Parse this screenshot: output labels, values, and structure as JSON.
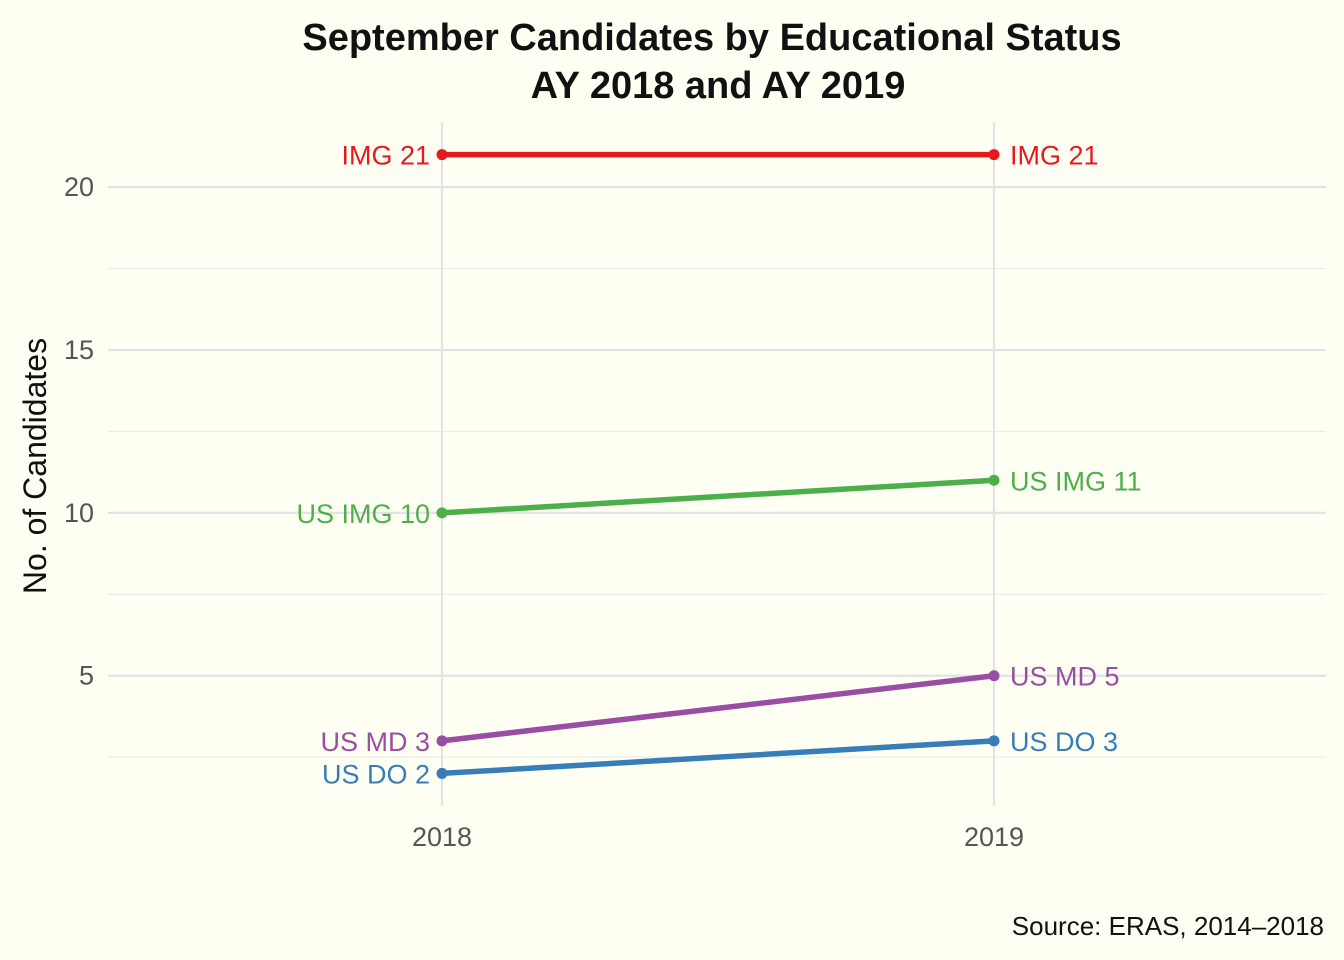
{
  "chart_data": {
    "type": "line",
    "title": "September Candidates by Educational Status",
    "subtitle": "AY 2018 and AY 2019",
    "xlabel": "",
    "ylabel": "No. of Candidates",
    "caption": "Source: ERAS, 2014–2018",
    "x": [
      "2018",
      "2019"
    ],
    "y_ticks": [
      5,
      10,
      15,
      20
    ],
    "ylim": [
      1.0,
      22.0
    ],
    "grid": true,
    "legend": "none",
    "series": [
      {
        "name": "IMG",
        "color": "#e41a1c",
        "values": [
          21,
          21
        ],
        "labels": [
          "IMG 21",
          "IMG 21"
        ]
      },
      {
        "name": "US IMG",
        "color": "#4daf4a",
        "values": [
          10,
          11
        ],
        "labels": [
          "US IMG 10",
          "US IMG 11"
        ]
      },
      {
        "name": "US MD",
        "color": "#984ea3",
        "values": [
          3,
          5
        ],
        "labels": [
          "US MD 3",
          "US MD 5"
        ]
      },
      {
        "name": "US DO",
        "color": "#377eb8",
        "values": [
          2,
          3
        ],
        "labels": [
          "US DO 2",
          "US DO 3"
        ]
      }
    ]
  }
}
